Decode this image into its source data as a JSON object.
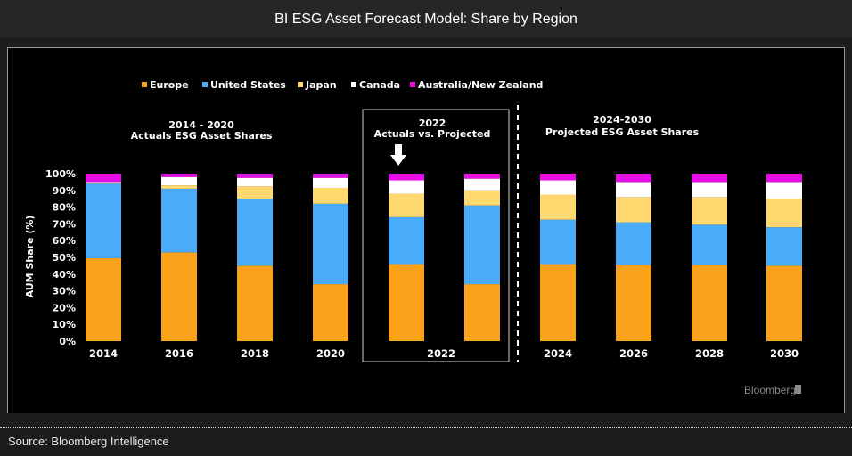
{
  "window": {
    "title": "BI ESG Asset Forecast Model: Share by Region"
  },
  "footer": {
    "source": "Source: Bloomberg Intelligence",
    "logo_text": "Bloomberg"
  },
  "annotations": {
    "group1_line1": "2014 - 2020",
    "group1_line2": "Actuals ESG Asset Shares",
    "group2_line1": "2022",
    "group2_line2": "Actuals vs. Projected",
    "group3_line1": "2024-2030",
    "group3_line2": "Projected ESG Asset Shares"
  },
  "chart_data": {
    "type": "bar",
    "stacked": true,
    "title": "BI ESG Asset Forecast Model: Share by Region",
    "xlabel": "",
    "ylabel": "AUM Share (%)",
    "ylim": [
      0,
      100
    ],
    "yticks": [
      "0%",
      "10%",
      "20%",
      "30%",
      "40%",
      "50%",
      "60%",
      "70%",
      "80%",
      "90%",
      "100%"
    ],
    "legend_position": "top",
    "categories": [
      "2014",
      "2016",
      "2018",
      "2020",
      "2022 (projected)",
      "2022 (actual)",
      "2024",
      "2026",
      "2028",
      "2030"
    ],
    "xtick_labels": [
      "2014",
      "2016",
      "2018",
      "2020",
      "2022",
      "2024",
      "2026",
      "2028",
      "2030"
    ],
    "series": [
      {
        "name": "Europe",
        "color": "#fba21c",
        "values": [
          49.5,
          53,
          45,
          34,
          46,
          34,
          46,
          45.5,
          45.5,
          45
        ]
      },
      {
        "name": "United States",
        "color": "#4aabfb",
        "values": [
          44.5,
          38,
          40,
          48,
          28,
          47,
          26.5,
          25.5,
          24,
          23
        ]
      },
      {
        "name": "Japan",
        "color": "#ffd970",
        "values": [
          0.3,
          2,
          7.5,
          9.5,
          14,
          9,
          15,
          15,
          16.5,
          17
        ]
      },
      {
        "name": "Canada",
        "color": "#ffffff",
        "values": [
          0.7,
          5,
          5,
          6,
          8,
          7,
          8.5,
          9,
          9,
          10
        ]
      },
      {
        "name": "Australia/New Zealand",
        "color": "#e60de6",
        "values": [
          5,
          2,
          2.5,
          2.5,
          4,
          3,
          4,
          5,
          5,
          5
        ]
      }
    ],
    "highlight": {
      "category": "2022 (projected)",
      "marker": "down-arrow"
    }
  }
}
